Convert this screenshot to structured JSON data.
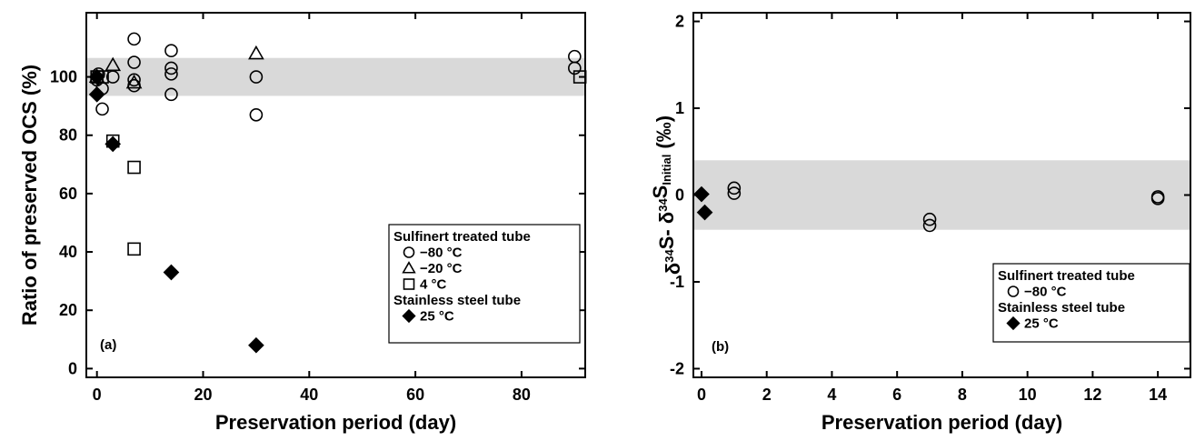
{
  "chart_data": [
    {
      "type": "scatter",
      "panel_label": "(a)",
      "xlabel": "Preservation period (day)",
      "ylabel": "Ratio of preserved OCS (%)",
      "xlim": [
        -2,
        92
      ],
      "ylim": [
        -3,
        122
      ],
      "xticks": [
        0,
        20,
        40,
        60,
        80
      ],
      "yticks": [
        0,
        20,
        40,
        60,
        80,
        100
      ],
      "band": {
        "from": 93.5,
        "to": 106.5,
        "color": "#d9d9d9"
      },
      "grid": false,
      "legend": {
        "position": "bottom-right",
        "entries": [
          {
            "text": "Sulfinert treated tube",
            "marker": ""
          },
          {
            "text": "−80 °C",
            "marker": "circle"
          },
          {
            "text": "−20 °C",
            "marker": "triangle"
          },
          {
            "text": "4 °C",
            "marker": "square"
          },
          {
            "text": "Stainless steel tube",
            "marker": ""
          },
          {
            "text": "25 °C",
            "marker": "diamond"
          }
        ]
      },
      "series": [
        {
          "name": "−80 °C",
          "group": "Sulfinert treated tube",
          "marker": "circle",
          "x": [
            0,
            0.3,
            1,
            1,
            3,
            7,
            7,
            7,
            7,
            14,
            14,
            14,
            14,
            30,
            30,
            90,
            90
          ],
          "y": [
            99,
            101,
            96,
            89,
            100,
            113,
            105,
            99,
            97,
            109,
            103,
            101,
            94,
            100,
            87,
            107,
            103
          ]
        },
        {
          "name": "−20 °C",
          "group": "Sulfinert treated tube",
          "marker": "triangle",
          "x": [
            0,
            3,
            7,
            30
          ],
          "y": [
            100,
            104,
            98,
            108
          ]
        },
        {
          "name": "4 °C",
          "group": "Sulfinert treated tube",
          "marker": "square",
          "x": [
            0,
            1,
            3,
            7,
            7,
            91
          ],
          "y": [
            100,
            100,
            78,
            69,
            41,
            100
          ]
        },
        {
          "name": "25 °C",
          "group": "Stainless steel tube",
          "marker": "diamond",
          "x": [
            0,
            0,
            3,
            14,
            30
          ],
          "y": [
            100,
            94,
            77,
            33,
            8
          ]
        }
      ]
    },
    {
      "type": "scatter",
      "panel_label": "(b)",
      "xlabel": "Preservation period (day)",
      "ylabel": "δ³⁴S - δ³⁴Sᴵⁿⁱᵗⁱᵃˡ (‰)",
      "ylabel_parts": {
        "delta": "δ",
        "mass": "34",
        "S": "S",
        "minus": "- ",
        "subscript": "Initial",
        "unit": " (‰)"
      },
      "xlim": [
        -0.25,
        15
      ],
      "ylim": [
        -2.1,
        2.1
      ],
      "xticks": [
        0,
        2,
        4,
        6,
        8,
        10,
        12,
        14
      ],
      "yticks": [
        -2,
        -1,
        0,
        1,
        2
      ],
      "band": {
        "from": -0.4,
        "to": 0.4,
        "color": "#d9d9d9"
      },
      "grid": false,
      "legend": {
        "position": "bottom-right",
        "entries": [
          {
            "text": "Sulfinert treated tube",
            "marker": ""
          },
          {
            "text": "−80 °C",
            "marker": "circle"
          },
          {
            "text": "Stainless steel tube",
            "marker": ""
          },
          {
            "text": "25 °C",
            "marker": "diamond"
          }
        ]
      },
      "series": [
        {
          "name": "−80 °C",
          "group": "Sulfinert treated tube",
          "marker": "circle",
          "x": [
            1,
            1,
            7,
            7,
            14,
            14
          ],
          "y": [
            0.08,
            0.02,
            -0.28,
            -0.35,
            -0.02,
            -0.04
          ]
        },
        {
          "name": "25 °C",
          "group": "Stainless steel tube",
          "marker": "diamond",
          "x": [
            0,
            0.1
          ],
          "y": [
            0.01,
            -0.2
          ]
        }
      ]
    }
  ]
}
